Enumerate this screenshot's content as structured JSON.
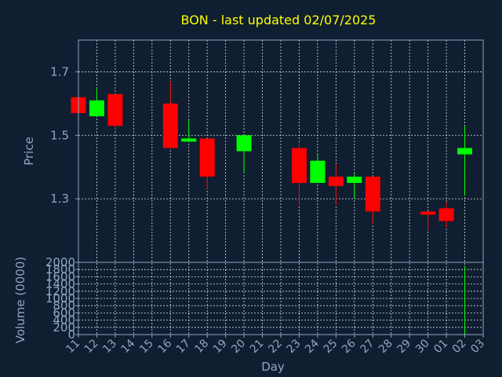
{
  "chart_data": {
    "type": "candlestick",
    "title": "BON - last updated 02/07/2025",
    "xlabel": "Day",
    "price_panel": {
      "ylabel": "Price",
      "ylim": [
        1.1,
        1.8
      ],
      "yticks": [
        1.3,
        1.5,
        1.7
      ],
      "ytick_labels": [
        "1.3",
        "1.5",
        "1.7"
      ],
      "grid": true
    },
    "volume_panel": {
      "ylabel": "Volume (0000)",
      "ylim": [
        0,
        2000
      ],
      "yticks": [
        0,
        200,
        400,
        600,
        800,
        1000,
        1200,
        1400,
        1600,
        1800,
        2000
      ],
      "ytick_labels": [
        "0",
        "200",
        "400",
        "600",
        "800",
        "1000",
        "1200",
        "1400",
        "1600",
        "1800",
        "2000"
      ],
      "grid": true
    },
    "x_tick_labels": [
      "11",
      "12",
      "13",
      "14",
      "15",
      "16",
      "17",
      "18",
      "19",
      "20",
      "21",
      "22",
      "23",
      "24",
      "25",
      "26",
      "27",
      "28",
      "29",
      "30",
      "01",
      "02",
      "03"
    ],
    "colors": {
      "up": "#00ff00",
      "down": "#ff0000",
      "background": "#0f1e30",
      "title": "#ffff00",
      "axis_text": "#8fa6c4"
    },
    "candles": [
      {
        "day": "11",
        "open": 1.62,
        "high": 1.62,
        "low": 1.57,
        "close": 1.57,
        "volume": 0
      },
      {
        "day": "12",
        "open": 1.56,
        "high": 1.65,
        "low": 1.56,
        "close": 1.61,
        "volume": 0
      },
      {
        "day": "13",
        "open": 1.63,
        "high": 1.63,
        "low": 1.52,
        "close": 1.53,
        "volume": 0
      },
      {
        "day": "16",
        "open": 1.6,
        "high": 1.67,
        "low": 1.46,
        "close": 1.46,
        "volume": 15
      },
      {
        "day": "17",
        "open": 1.48,
        "high": 1.55,
        "low": 1.48,
        "close": 1.49,
        "volume": 0
      },
      {
        "day": "18",
        "open": 1.49,
        "high": 1.49,
        "low": 1.33,
        "close": 1.37,
        "volume": 10
      },
      {
        "day": "20",
        "open": 1.45,
        "high": 1.5,
        "low": 1.38,
        "close": 1.5,
        "volume": 0
      },
      {
        "day": "23",
        "open": 1.46,
        "high": 1.48,
        "low": 1.28,
        "close": 1.35,
        "volume": 0
      },
      {
        "day": "24",
        "open": 1.35,
        "high": 1.44,
        "low": 1.35,
        "close": 1.42,
        "volume": 0
      },
      {
        "day": "25",
        "open": 1.37,
        "high": 1.41,
        "low": 1.28,
        "close": 1.34,
        "volume": 0
      },
      {
        "day": "26",
        "open": 1.35,
        "high": 1.38,
        "low": 1.3,
        "close": 1.37,
        "volume": 0
      },
      {
        "day": "27",
        "open": 1.37,
        "high": 1.37,
        "low": 1.22,
        "close": 1.26,
        "volume": 0
      },
      {
        "day": "30",
        "open": 1.26,
        "high": 1.26,
        "low": 1.2,
        "close": 1.25,
        "volume": 0
      },
      {
        "day": "01",
        "open": 1.27,
        "high": 1.29,
        "low": 1.21,
        "close": 1.23,
        "volume": 0
      },
      {
        "day": "02",
        "open": 1.44,
        "high": 1.53,
        "low": 1.31,
        "close": 1.46,
        "volume": 1900
      }
    ]
  }
}
